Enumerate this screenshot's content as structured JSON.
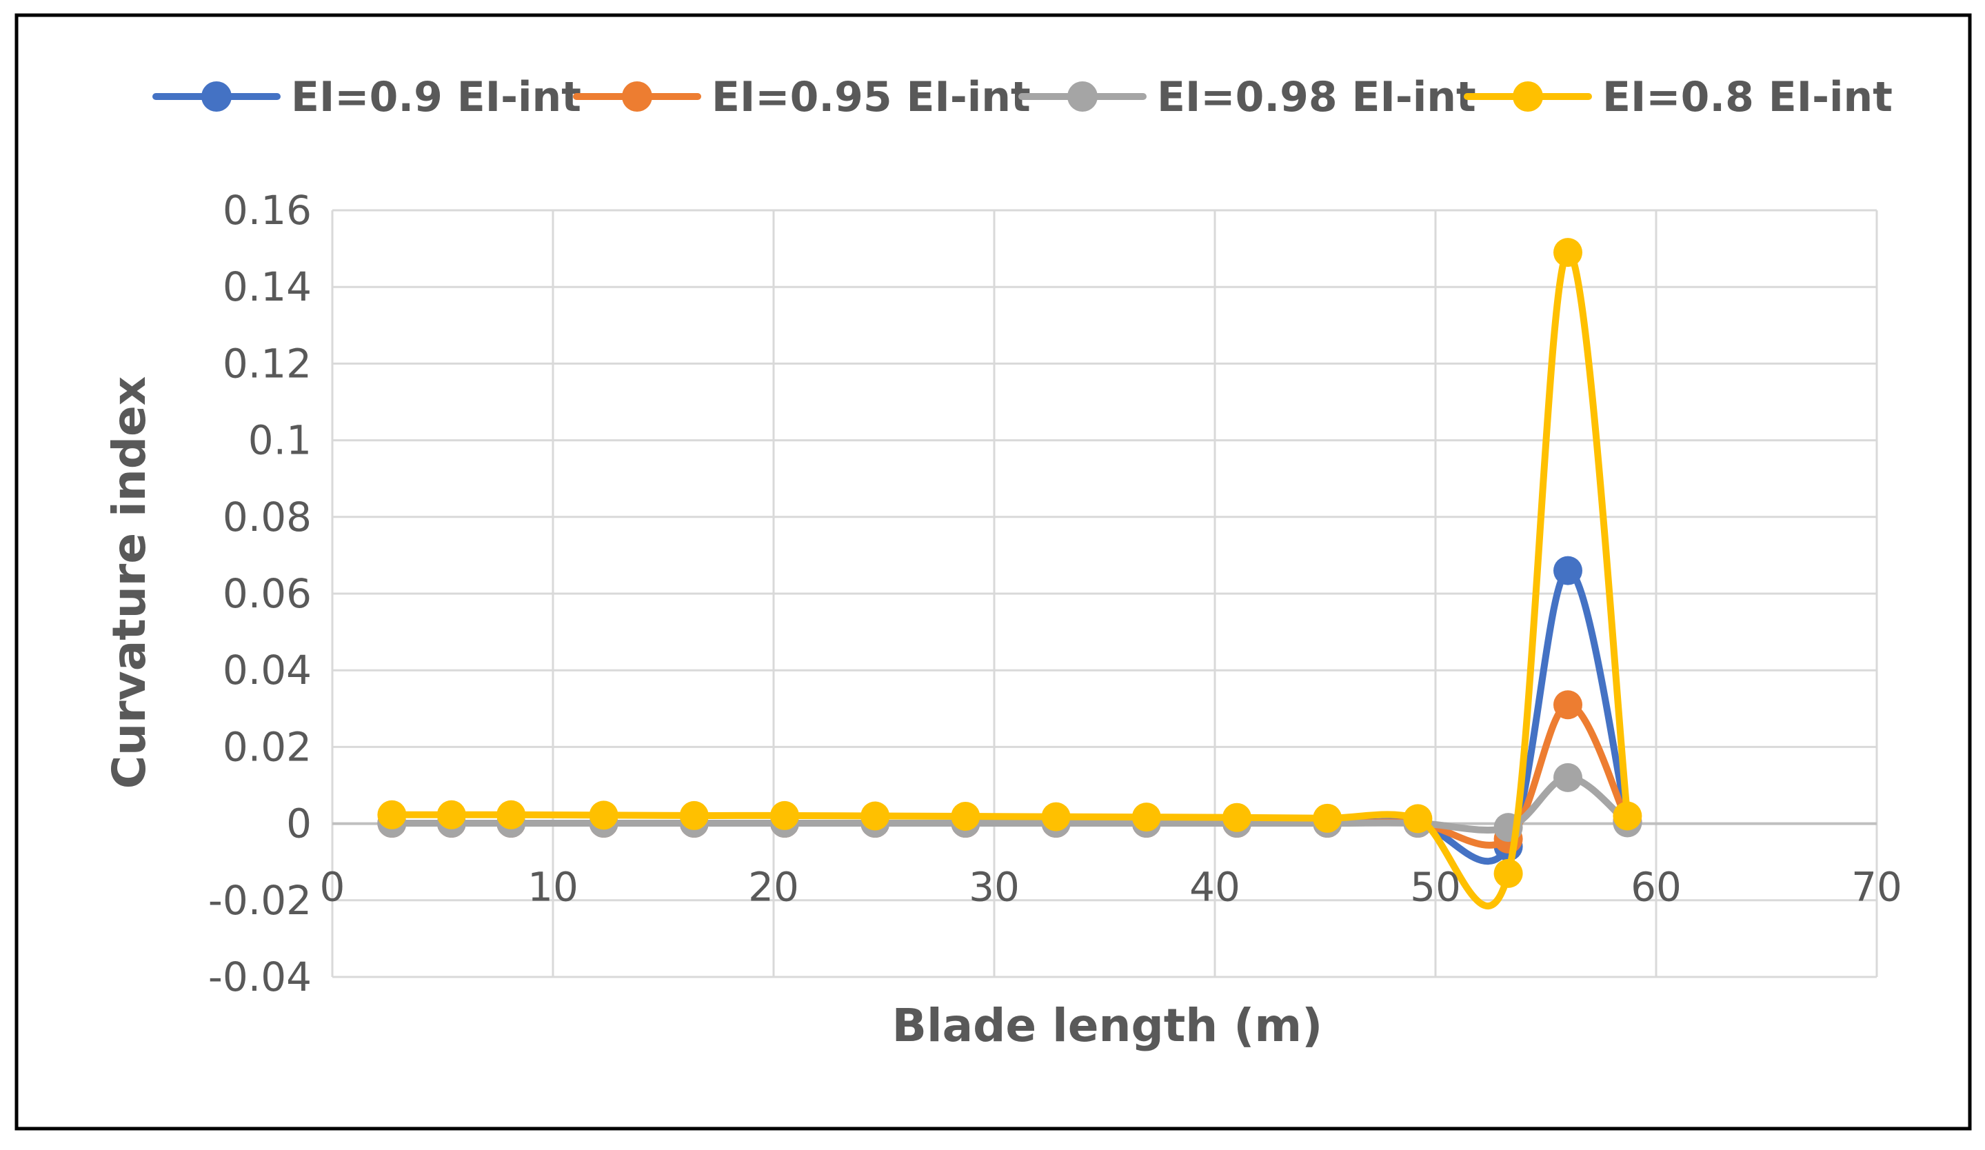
{
  "chart_data": {
    "type": "line",
    "xlabel": "Blade length (m)",
    "ylabel": "Curvature index",
    "xlim": [
      0,
      70
    ],
    "ylim": [
      -0.04,
      0.16
    ],
    "xticks": [
      "0",
      "10",
      "20",
      "30",
      "40",
      "50",
      "60",
      "70"
    ],
    "yticks": [
      "-0.04",
      "-0.02",
      "0",
      "0.02",
      "0.04",
      "0.06",
      "0.08",
      "0.1",
      "0.12",
      "0.14",
      "0.16"
    ],
    "grid": true,
    "legend_position": "top",
    "x": [
      2.7,
      5.4,
      8.1,
      12.3,
      16.4,
      20.5,
      24.6,
      28.7,
      32.8,
      36.9,
      41.0,
      45.1,
      49.2,
      53.3,
      56.0,
      58.7
    ],
    "series": [
      {
        "name": "EI=0.9 EI-int",
        "color": "#4472C4",
        "values": [
          0.0001,
          0.0001,
          0.0001,
          0.0001,
          0.0001,
          0.0001,
          0.0001,
          0.0001,
          0.0001,
          0.0001,
          0.0001,
          0.0001,
          0.0001,
          -0.006,
          0.066,
          0.0005
        ]
      },
      {
        "name": "EI=0.95 EI-int",
        "color": "#ED7D31",
        "values": [
          0.0001,
          0.0001,
          0.0001,
          0.0001,
          0.0001,
          0.0001,
          0.0001,
          0.0001,
          0.0001,
          0.0001,
          0.0001,
          0.0001,
          0.0001,
          -0.004,
          0.031,
          0.0005
        ]
      },
      {
        "name": "EI=0.98 EI-int",
        "color": "#A5A5A5",
        "values": [
          0.0001,
          0.0001,
          0.0001,
          0.0001,
          0.0001,
          0.0001,
          0.0001,
          0.0001,
          0.0001,
          0.0001,
          0.0001,
          0.0001,
          0.0001,
          -0.001,
          0.012,
          0.0002
        ]
      },
      {
        "name": "EI=0.8 EI-int",
        "color": "#FFC000",
        "values": [
          0.0023,
          0.0023,
          0.0023,
          0.0022,
          0.0021,
          0.0021,
          0.002,
          0.0019,
          0.0018,
          0.0017,
          0.0016,
          0.0014,
          0.0013,
          -0.013,
          0.149,
          0.002
        ]
      }
    ]
  }
}
